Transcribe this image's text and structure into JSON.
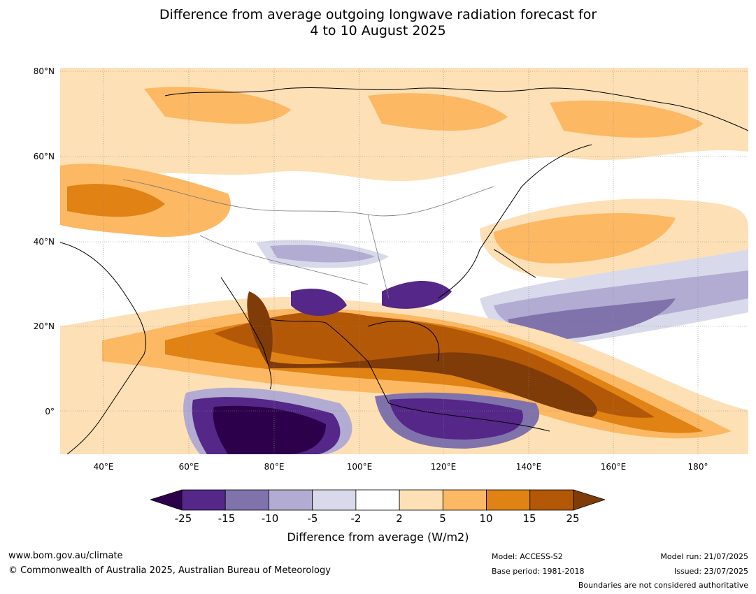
{
  "title_line1": "Difference from average outgoing longwave radiation forecast for",
  "title_line2": "4 to 10 August 2025",
  "lat_labels": [
    "80°N",
    "60°N",
    "40°N",
    "20°N",
    "0°"
  ],
  "lon_labels": [
    "40°E",
    "60°E",
    "80°E",
    "100°E",
    "120°E",
    "140°E",
    "160°E",
    "180°"
  ],
  "colorbar": {
    "ticks": [
      "-25",
      "-15",
      "-10",
      "-5",
      "-2",
      "2",
      "5",
      "10",
      "15",
      "25"
    ],
    "title": "Difference from average (W/m2)",
    "colors": [
      "#2d004b",
      "#542788",
      "#8073ac",
      "#b2abd2",
      "#d8daeb",
      "#ffffff",
      "#fee0b6",
      "#fdb863",
      "#e08214",
      "#b35806",
      "#7f3b08"
    ]
  },
  "footer": {
    "website": "www.bom.gov.au/climate",
    "copyright": "© Commonwealth of Australia 2025, Australian Bureau of Meteorology",
    "model": "Model: ACCESS-S2",
    "base_period": "Base period: 1981-2018",
    "model_run": "Model run: 21/07/2025",
    "issued": "Issued: 23/07/2025",
    "disclaimer": "Boundaries are not considered authoritative"
  }
}
